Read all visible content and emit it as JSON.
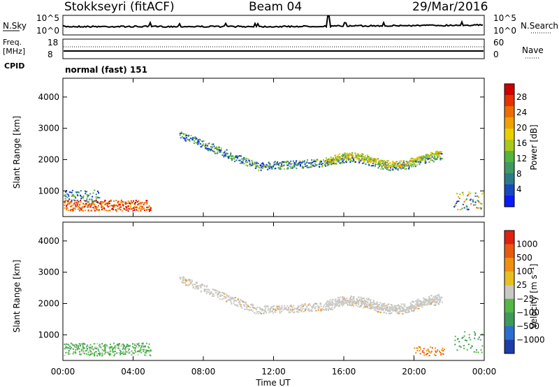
{
  "header": {
    "station": "Stokkseyri (fitACF)",
    "beam": "Beam 04",
    "date": "29/Mar/2016"
  },
  "top_panels": {
    "nsky_label": "N.Sky",
    "nsky_top_left": "10^5",
    "nsky_bottom_left": "10^0",
    "nsky_top_right": "10^5",
    "nsky_bottom_right": "10^0",
    "nsearch_label": "N.Search",
    "freq_label_1": "Freq.",
    "freq_label_2": "[MHz]",
    "freq_top": "18",
    "freq_bottom": "8",
    "nave_top": "60",
    "nave_bottom": "0",
    "nave_label": "Nave",
    "cpid_label": "CPID",
    "cpid_value": "normal (fast) 151"
  },
  "chart_data": [
    {
      "type": "heatmap",
      "panel": "power",
      "ylabel": "Slant Range [km]",
      "ylim": [
        180,
        4600
      ],
      "yticks": [
        "1000",
        "2000",
        "3000",
        "4000"
      ],
      "colorbar_label": "Power [dB]",
      "colorbar_ticks": [
        "4",
        "8",
        "12",
        "16",
        "20",
        "24",
        "28"
      ],
      "colorscale": [
        "#0a1aff",
        "#1848c0",
        "#2b7a8a",
        "#3e9a62",
        "#55b43a",
        "#a8c81a",
        "#e8d000",
        "#f0a000",
        "#ee6d00",
        "#e83000",
        "#cc0000"
      ]
    },
    {
      "type": "heatmap",
      "panel": "velocity",
      "ylabel": "Slant Range [km]",
      "ylim": [
        180,
        4600
      ],
      "yticks": [
        "1000",
        "2000",
        "3000",
        "4000"
      ],
      "colorbar_label": "Velocity [m s⁻¹]",
      "colorbar_ticks": [
        "1000",
        "500",
        "100",
        "25",
        "−25",
        "−100",
        "−500",
        "−1000"
      ],
      "colorscale": [
        "#1e3ca8",
        "#2a6ed0",
        "#3c9a5a",
        "#55b845",
        "#c8c8c4",
        "#e6c020",
        "#f09010",
        "#e85a10",
        "#e02010"
      ],
      "xlabel": "Time UT",
      "xticks": [
        "00:00",
        "04:00",
        "08:00",
        "12:00",
        "16:00",
        "20:00",
        "00:00"
      ]
    }
  ]
}
